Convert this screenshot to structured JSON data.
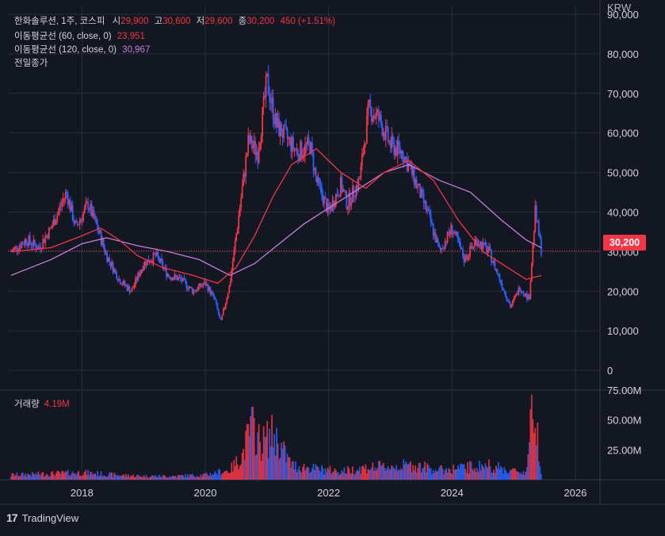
{
  "header": {
    "symbol": "한화솔루션, 1주, 코스피",
    "open_label": "시",
    "open": "29,900",
    "high_label": "고",
    "high": "30,600",
    "low_label": "저",
    "low": "29,600",
    "close_label": "종",
    "close": "30,200",
    "change": "450 (+1.51%)"
  },
  "indicators": {
    "ma60_label": "이동평균선 (60, close, 0)",
    "ma60_value": "23,951",
    "ma120_label": "이동평균선 (120, close, 0)",
    "ma120_value": "30,967",
    "prev_close_label": "전일종가"
  },
  "volume_panel": {
    "label": "거래량",
    "value": "4.19M"
  },
  "currency": "KRW",
  "last_price_tag": "30,200",
  "footer": {
    "brand": "TradingView",
    "logo": "17"
  },
  "colors": {
    "up": "#f23645",
    "down": "#2962ff",
    "ma60": "#f23645",
    "ma120": "#c77ddb",
    "background": "#131722",
    "grid": "#2a2e39"
  },
  "chart_data": {
    "type": "candlestick",
    "title": "한화솔루션, 1주, 코스피",
    "price_axis": {
      "ticks": [
        "90,000",
        "80,000",
        "70,000",
        "60,000",
        "50,000",
        "40,000",
        "30,000",
        "20,000",
        "10,000",
        "0"
      ],
      "ylim": [
        -5000,
        92000
      ]
    },
    "volume_axis": {
      "ticks": [
        "75.00M",
        "50.00M",
        "25.00M"
      ],
      "ylim": [
        0,
        75
      ]
    },
    "time_axis": {
      "ticks": [
        "2018",
        "2020",
        "2022",
        "2024",
        "2026"
      ],
      "xlim": [
        2016.8,
        2026.4
      ]
    },
    "close_path": [
      [
        2016.85,
        30000
      ],
      [
        2017.1,
        33000
      ],
      [
        2017.3,
        31000
      ],
      [
        2017.5,
        36000
      ],
      [
        2017.75,
        45000
      ],
      [
        2017.9,
        36000
      ],
      [
        2018.1,
        42000
      ],
      [
        2018.25,
        36000
      ],
      [
        2018.4,
        29000
      ],
      [
        2018.6,
        23000
      ],
      [
        2018.8,
        20000
      ],
      [
        2019.0,
        27000
      ],
      [
        2019.2,
        29000
      ],
      [
        2019.4,
        24000
      ],
      [
        2019.6,
        23000
      ],
      [
        2019.8,
        20000
      ],
      [
        2020.0,
        22000
      ],
      [
        2020.15,
        18000
      ],
      [
        2020.25,
        12000
      ],
      [
        2020.4,
        22000
      ],
      [
        2020.55,
        40000
      ],
      [
        2020.7,
        58000
      ],
      [
        2020.85,
        55000
      ],
      [
        2021.0,
        73000
      ],
      [
        2021.15,
        62000
      ],
      [
        2021.3,
        59000
      ],
      [
        2021.5,
        55000
      ],
      [
        2021.7,
        57000
      ],
      [
        2021.8,
        48000
      ],
      [
        2022.0,
        40000
      ],
      [
        2022.2,
        47000
      ],
      [
        2022.3,
        42000
      ],
      [
        2022.5,
        48000
      ],
      [
        2022.65,
        66000
      ],
      [
        2022.8,
        64000
      ],
      [
        2023.0,
        57000
      ],
      [
        2023.2,
        55000
      ],
      [
        2023.4,
        48000
      ],
      [
        2023.6,
        40000
      ],
      [
        2023.8,
        30000
      ],
      [
        2024.0,
        36000
      ],
      [
        2024.2,
        28000
      ],
      [
        2024.4,
        33000
      ],
      [
        2024.6,
        30000
      ],
      [
        2024.8,
        22000
      ],
      [
        2024.95,
        16000
      ],
      [
        2025.1,
        21000
      ],
      [
        2025.25,
        18000
      ],
      [
        2025.35,
        40000
      ],
      [
        2025.45,
        30200
      ]
    ],
    "ma60_path": [
      [
        2016.85,
        30000
      ],
      [
        2017.5,
        31000
      ],
      [
        2018.0,
        34000
      ],
      [
        2018.3,
        36000
      ],
      [
        2018.6,
        33000
      ],
      [
        2018.9,
        29000
      ],
      [
        2019.3,
        26000
      ],
      [
        2019.8,
        24000
      ],
      [
        2020.2,
        22000
      ],
      [
        2020.5,
        26000
      ],
      [
        2020.8,
        34000
      ],
      [
        2021.1,
        44000
      ],
      [
        2021.4,
        52000
      ],
      [
        2021.8,
        56000
      ],
      [
        2022.2,
        50000
      ],
      [
        2022.6,
        46000
      ],
      [
        2022.9,
        50000
      ],
      [
        2023.3,
        53000
      ],
      [
        2023.7,
        48000
      ],
      [
        2024.1,
        38000
      ],
      [
        2024.5,
        30000
      ],
      [
        2024.9,
        26000
      ],
      [
        2025.2,
        23000
      ],
      [
        2025.45,
        23951
      ]
    ],
    "ma120_path": [
      [
        2016.85,
        24000
      ],
      [
        2017.5,
        28000
      ],
      [
        2018.0,
        32000
      ],
      [
        2018.4,
        33500
      ],
      [
        2018.9,
        31500
      ],
      [
        2019.4,
        30000
      ],
      [
        2019.9,
        28000
      ],
      [
        2020.4,
        24000
      ],
      [
        2020.8,
        27000
      ],
      [
        2021.2,
        32000
      ],
      [
        2021.6,
        37000
      ],
      [
        2022.0,
        41000
      ],
      [
        2022.4,
        45000
      ],
      [
        2022.9,
        50000
      ],
      [
        2023.3,
        52000
      ],
      [
        2023.8,
        48000
      ],
      [
        2024.3,
        45000
      ],
      [
        2024.8,
        38000
      ],
      [
        2025.2,
        33000
      ],
      [
        2025.45,
        30967
      ]
    ],
    "volume_path": [
      [
        2016.85,
        4
      ],
      [
        2017.5,
        5
      ],
      [
        2018.0,
        6
      ],
      [
        2018.5,
        4
      ],
      [
        2019.0,
        3
      ],
      [
        2019.5,
        3
      ],
      [
        2020.0,
        4
      ],
      [
        2020.4,
        8
      ],
      [
        2020.6,
        20
      ],
      [
        2020.75,
        45
      ],
      [
        2020.9,
        30
      ],
      [
        2021.1,
        38
      ],
      [
        2021.4,
        12
      ],
      [
        2021.8,
        9
      ],
      [
        2022.2,
        7
      ],
      [
        2022.6,
        10
      ],
      [
        2023.0,
        11
      ],
      [
        2023.4,
        12
      ],
      [
        2023.8,
        8
      ],
      [
        2024.2,
        10
      ],
      [
        2024.6,
        12
      ],
      [
        2024.9,
        8
      ],
      [
        2025.2,
        6
      ],
      [
        2025.3,
        55
      ],
      [
        2025.35,
        62
      ],
      [
        2025.45,
        4.19
      ]
    ]
  }
}
